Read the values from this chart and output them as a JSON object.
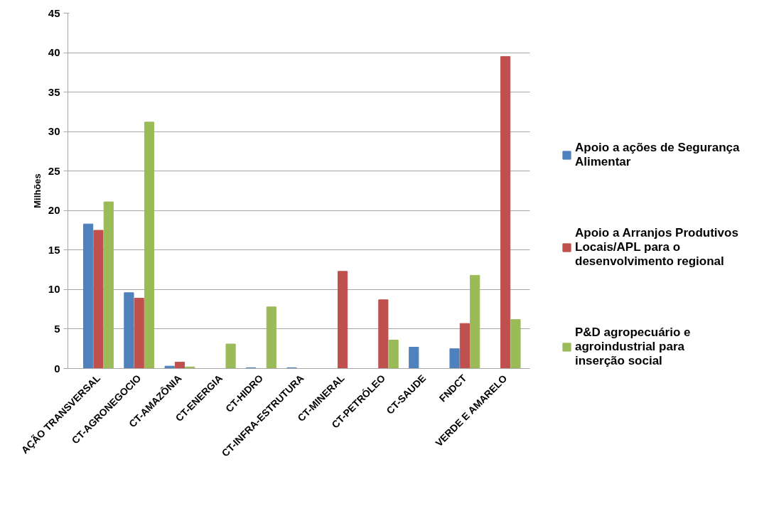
{
  "chart_data": {
    "type": "bar",
    "ylabel": "Milhões",
    "categories": [
      "AÇÃO TRANSVERSAL",
      "CT-AGRONEGOCIO",
      "CT-AMAZÔNIA",
      "CT-ENERGIA",
      "CT-HIDRO",
      "CT-INFRA-ESTRUTURA",
      "CT-MINERAL",
      "CT-PETRÓLEO",
      "CT-SAUDE",
      "FNDCT",
      "VERDE E AMARELO"
    ],
    "series": [
      {
        "name": "Apoio a ações de Segurança Alimentar",
        "color": "#4f81bd",
        "values": [
          18.3,
          9.6,
          0.3,
          null,
          0.1,
          0.1,
          null,
          null,
          2.7,
          2.5,
          null
        ]
      },
      {
        "name": "Apoio a Arranjos Produtivos Locais/APL para o desenvolvimento regional",
        "color": "#c0504d",
        "values": [
          17.5,
          8.9,
          0.8,
          null,
          null,
          null,
          12.3,
          8.7,
          null,
          5.7,
          39.5
        ]
      },
      {
        "name": "P&D agropecuário e agroindustrial para inserção social",
        "color": "#9bbb59",
        "values": [
          21.1,
          31.2,
          0.2,
          3.1,
          7.8,
          null,
          null,
          3.6,
          null,
          11.8,
          6.2
        ]
      }
    ],
    "ylim": [
      0,
      45
    ],
    "yticks": [
      0,
      5,
      10,
      15,
      20,
      25,
      30,
      35,
      40,
      45
    ],
    "grid": "y",
    "legend": "right"
  }
}
